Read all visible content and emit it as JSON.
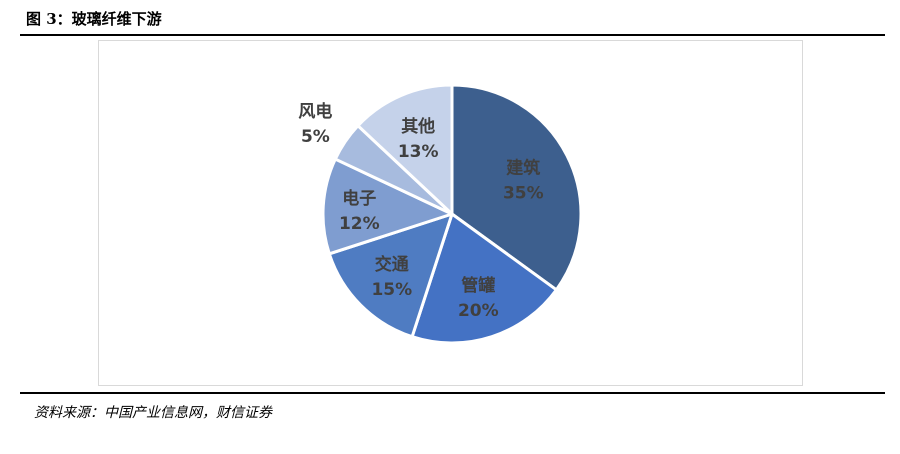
{
  "figure": {
    "title": "图 3：玻璃纤维下游",
    "source": "资料来源：中国产业信息网，财信证券"
  },
  "chart_data": {
    "type": "pie",
    "categories": [
      "建筑",
      "管罐",
      "交通",
      "电子",
      "风电",
      "其他"
    ],
    "values": [
      35,
      20,
      15,
      12,
      5,
      13
    ],
    "value_labels": [
      "35%",
      "20%",
      "15%",
      "12%",
      "5%",
      "13%"
    ],
    "colors": [
      "#3d5f8e",
      "#4472c4",
      "#4f7cc2",
      "#7f9dd0",
      "#a7bbde",
      "#c5d2ea"
    ],
    "start_angle": "12 o'clock",
    "direction": "clockwise",
    "legend": "none"
  }
}
